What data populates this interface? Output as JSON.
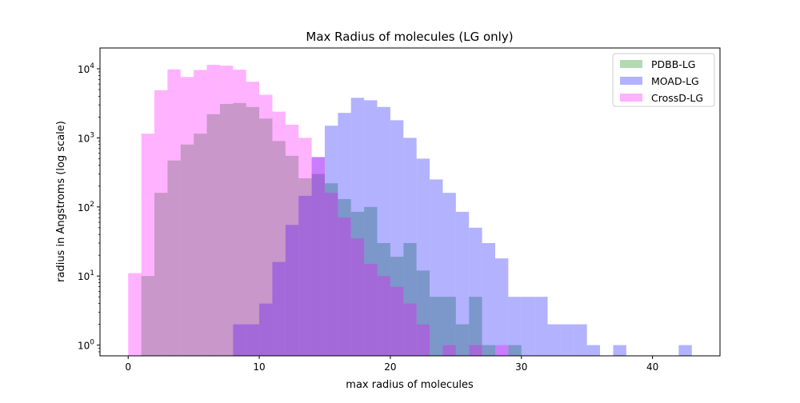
{
  "chart_data": {
    "type": "bar",
    "subtype": "histogram",
    "title": "Max Radius of molecules (LG only)",
    "xlabel": "max radius of molecules",
    "ylabel": "radius in Angstroms (log scale)",
    "xlim": [
      -2.15,
      45.15
    ],
    "ylim": [
      0.7,
      20000
    ],
    "xticks": [
      0,
      10,
      20,
      30,
      40
    ],
    "yticks": [
      1,
      10,
      100,
      1000,
      10000
    ],
    "ytick_labels": [
      {
        "base": "10",
        "exp": "0"
      },
      {
        "base": "10",
        "exp": "1"
      },
      {
        "base": "10",
        "exp": "2"
      },
      {
        "base": "10",
        "exp": "3"
      },
      {
        "base": "10",
        "exp": "4"
      }
    ],
    "y_scale": "log",
    "grid": false,
    "legend_position": "top-right",
    "series": [
      {
        "name": "PDBB-LG",
        "color": "#008000",
        "alpha": 0.3,
        "bins": [
          {
            "x0": 1,
            "x1": 2,
            "y": 10
          },
          {
            "x0": 2,
            "x1": 3,
            "y": 160
          },
          {
            "x0": 3,
            "x1": 4,
            "y": 470
          },
          {
            "x0": 4,
            "x1": 5,
            "y": 800
          },
          {
            "x0": 5,
            "x1": 6,
            "y": 1150
          },
          {
            "x0": 6,
            "x1": 7,
            "y": 2200
          },
          {
            "x0": 7,
            "x1": 8,
            "y": 3100
          },
          {
            "x0": 8,
            "x1": 9,
            "y": 3200
          },
          {
            "x0": 9,
            "x1": 10,
            "y": 2800
          },
          {
            "x0": 10,
            "x1": 11,
            "y": 1900
          },
          {
            "x0": 11,
            "x1": 12,
            "y": 900
          },
          {
            "x0": 12,
            "x1": 13,
            "y": 550
          },
          {
            "x0": 13,
            "x1": 14,
            "y": 260
          },
          {
            "x0": 14,
            "x1": 15,
            "y": 300
          },
          {
            "x0": 15,
            "x1": 16,
            "y": 220
          },
          {
            "x0": 16,
            "x1": 17,
            "y": 130
          },
          {
            "x0": 17,
            "x1": 18,
            "y": 85
          },
          {
            "x0": 18,
            "x1": 19,
            "y": 100
          },
          {
            "x0": 19,
            "x1": 20,
            "y": 30
          },
          {
            "x0": 20,
            "x1": 21,
            "y": 19
          },
          {
            "x0": 21,
            "x1": 22,
            "y": 30
          },
          {
            "x0": 22,
            "x1": 23,
            "y": 12
          },
          {
            "x0": 23,
            "x1": 24,
            "y": 5
          },
          {
            "x0": 24,
            "x1": 25,
            "y": 5
          },
          {
            "x0": 25,
            "x1": 26,
            "y": 2
          },
          {
            "x0": 26,
            "x1": 27,
            "y": 5
          },
          {
            "x0": 27,
            "x1": 28,
            "y": 1
          },
          {
            "x0": 29,
            "x1": 30,
            "y": 1
          }
        ]
      },
      {
        "name": "MOAD-LG",
        "color": "#0000ff",
        "alpha": 0.3,
        "bins": [
          {
            "x0": 8,
            "x1": 9,
            "y": 2
          },
          {
            "x0": 9,
            "x1": 10,
            "y": 2
          },
          {
            "x0": 10,
            "x1": 11,
            "y": 4
          },
          {
            "x0": 11,
            "x1": 12,
            "y": 16
          },
          {
            "x0": 12,
            "x1": 13,
            "y": 55
          },
          {
            "x0": 13,
            "x1": 14,
            "y": 145
          },
          {
            "x0": 14,
            "x1": 15,
            "y": 530
          },
          {
            "x0": 15,
            "x1": 16,
            "y": 1500
          },
          {
            "x0": 16,
            "x1": 17,
            "y": 2300
          },
          {
            "x0": 17,
            "x1": 18,
            "y": 3800
          },
          {
            "x0": 18,
            "x1": 19,
            "y": 3500
          },
          {
            "x0": 19,
            "x1": 20,
            "y": 2800
          },
          {
            "x0": 20,
            "x1": 21,
            "y": 1800
          },
          {
            "x0": 21,
            "x1": 22,
            "y": 1000
          },
          {
            "x0": 22,
            "x1": 23,
            "y": 500
          },
          {
            "x0": 23,
            "x1": 24,
            "y": 250
          },
          {
            "x0": 24,
            "x1": 25,
            "y": 160
          },
          {
            "x0": 25,
            "x1": 26,
            "y": 85
          },
          {
            "x0": 26,
            "x1": 27,
            "y": 50
          },
          {
            "x0": 27,
            "x1": 28,
            "y": 30
          },
          {
            "x0": 28,
            "x1": 29,
            "y": 18
          },
          {
            "x0": 29,
            "x1": 30,
            "y": 5
          },
          {
            "x0": 30,
            "x1": 31,
            "y": 5
          },
          {
            "x0": 31,
            "x1": 32,
            "y": 5
          },
          {
            "x0": 32,
            "x1": 33,
            "y": 2
          },
          {
            "x0": 33,
            "x1": 34,
            "y": 2
          },
          {
            "x0": 34,
            "x1": 35,
            "y": 2
          },
          {
            "x0": 35,
            "x1": 36,
            "y": 1
          },
          {
            "x0": 37,
            "x1": 38,
            "y": 1
          },
          {
            "x0": 42,
            "x1": 43,
            "y": 1
          }
        ]
      },
      {
        "name": "CrossD-LG",
        "color": "#ff00ff",
        "alpha": 0.3,
        "bins": [
          {
            "x0": 0,
            "x1": 1,
            "y": 11
          },
          {
            "x0": 1,
            "x1": 2,
            "y": 1150
          },
          {
            "x0": 2,
            "x1": 3,
            "y": 4900
          },
          {
            "x0": 3,
            "x1": 4,
            "y": 9800
          },
          {
            "x0": 4,
            "x1": 5,
            "y": 7600
          },
          {
            "x0": 5,
            "x1": 6,
            "y": 9600
          },
          {
            "x0": 6,
            "x1": 7,
            "y": 11400
          },
          {
            "x0": 7,
            "x1": 8,
            "y": 11100
          },
          {
            "x0": 8,
            "x1": 9,
            "y": 9700
          },
          {
            "x0": 9,
            "x1": 10,
            "y": 6500
          },
          {
            "x0": 10,
            "x1": 11,
            "y": 4200
          },
          {
            "x0": 11,
            "x1": 12,
            "y": 2400
          },
          {
            "x0": 12,
            "x1": 13,
            "y": 1550
          },
          {
            "x0": 13,
            "x1": 14,
            "y": 1000
          },
          {
            "x0": 14,
            "x1": 15,
            "y": 520
          },
          {
            "x0": 15,
            "x1": 16,
            "y": 160
          },
          {
            "x0": 16,
            "x1": 17,
            "y": 70
          },
          {
            "x0": 17,
            "x1": 18,
            "y": 35
          },
          {
            "x0": 18,
            "x1": 19,
            "y": 15
          },
          {
            "x0": 19,
            "x1": 20,
            "y": 10
          },
          {
            "x0": 20,
            "x1": 21,
            "y": 7
          },
          {
            "x0": 21,
            "x1": 22,
            "y": 4
          },
          {
            "x0": 22,
            "x1": 23,
            "y": 2
          },
          {
            "x0": 24,
            "x1": 25,
            "y": 1
          },
          {
            "x0": 26,
            "x1": 27,
            "y": 1
          },
          {
            "x0": 28,
            "x1": 29,
            "y": 1
          }
        ]
      }
    ]
  }
}
